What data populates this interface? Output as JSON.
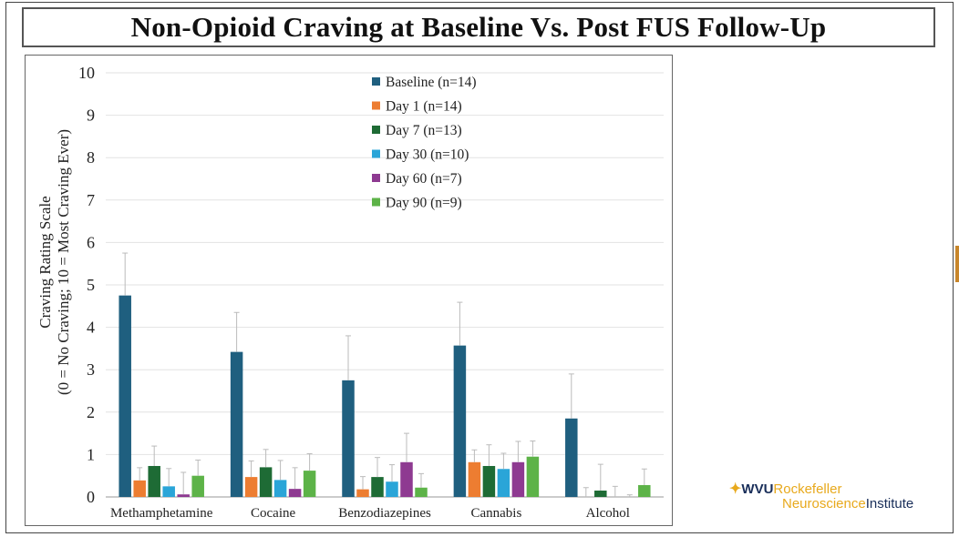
{
  "slide": {
    "title": "Non-Opioid Craving at Baseline Vs. Post FUS Follow-Up"
  },
  "logo": {
    "wvu": "WVU",
    "rockefeller": "Rockefeller",
    "neuroscience": "Neuroscience",
    "institute": "Institute",
    "colors": {
      "gold": "#e8a91c",
      "navy": "#1a2f5a"
    }
  },
  "chart_data": {
    "type": "bar",
    "title": "",
    "xlabel": "",
    "ylabel_line1": "Craving Rating Scale",
    "ylabel_line2": "(0 = No Craving; 10 = Most Craving Ever)",
    "ylim": [
      0,
      10
    ],
    "yticks": [
      "0",
      "1",
      "2",
      "3",
      "4",
      "5",
      "6",
      "7",
      "8",
      "9",
      "10"
    ],
    "grid": true,
    "legend_position": "top-center",
    "error_bars": true,
    "categories": [
      "Methamphetamine",
      "Cocaine",
      "Benzodiazepines",
      "Cannabis",
      "Alcohol"
    ],
    "series": [
      {
        "name": "Baseline (n=14)",
        "color": "#1f5f7f",
        "values": [
          4.75,
          3.42,
          2.75,
          3.57,
          1.85
        ],
        "errors": [
          1.0,
          0.93,
          1.05,
          1.02,
          1.05
        ]
      },
      {
        "name": "Day 1 (n=14)",
        "color": "#ed7d31",
        "values": [
          0.39,
          0.47,
          0.18,
          0.82,
          0.0
        ],
        "errors": [
          0.3,
          0.38,
          0.3,
          0.29,
          0.22
        ]
      },
      {
        "name": "Day 7 (n=13)",
        "color": "#1e6b35",
        "values": [
          0.73,
          0.7,
          0.47,
          0.73,
          0.15
        ],
        "errors": [
          0.47,
          0.42,
          0.46,
          0.5,
          0.62
        ]
      },
      {
        "name": "Day 30 (n=10)",
        "color": "#2aa5d8",
        "values": [
          0.25,
          0.4,
          0.36,
          0.66,
          0.0
        ],
        "errors": [
          0.42,
          0.46,
          0.4,
          0.37,
          0.25
        ]
      },
      {
        "name": "Day 60 (n=7)",
        "color": "#8e3a91",
        "values": [
          0.06,
          0.19,
          0.82,
          0.82,
          0.0
        ],
        "errors": [
          0.52,
          0.5,
          0.68,
          0.49,
          0.05
        ]
      },
      {
        "name": "Day 90 (n=9)",
        "color": "#5db348",
        "values": [
          0.5,
          0.62,
          0.22,
          0.95,
          0.28
        ],
        "errors": [
          0.37,
          0.4,
          0.33,
          0.37,
          0.38
        ]
      }
    ]
  }
}
